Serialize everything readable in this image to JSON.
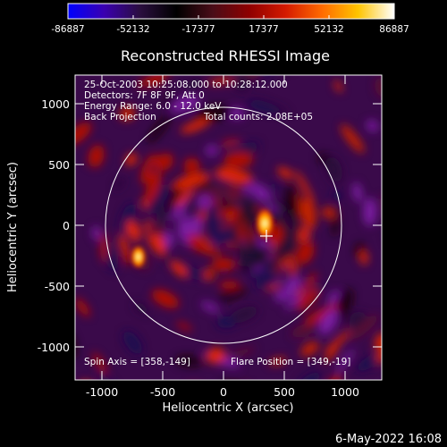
{
  "title": "Reconstructed RHESSI Image",
  "annotations": {
    "time": "25-Oct-2003 10:25:08.000 to 10:28:12.000",
    "detectors": "Detectors: 7F 8F 9F, Att 0",
    "energy": "Energy Range: 6.0 - 12.0 keV",
    "method": "Back Projection",
    "counts": "Total counts: 2.08E+05",
    "spin_axis": "Spin Axis = [358,-149]",
    "flare_position": "Flare Position = [349,-19]"
  },
  "axes": {
    "xlabel": "Heliocentric X (arcsec)",
    "ylabel": "Heliocentric Y (arcsec)",
    "x_ticks": [
      "-1000",
      "-500",
      "0",
      "500",
      "1000"
    ],
    "y_ticks": [
      "1000",
      "500",
      "0",
      "-500",
      "-1000"
    ]
  },
  "colorbar": {
    "ticks": [
      "-86887",
      "-52132",
      "-17377",
      "17377",
      "52132",
      "86887"
    ],
    "colors": [
      "#0000ff",
      "#3a00b0",
      "#2a0e3e",
      "#000000",
      "#4a0d18",
      "#8f0000",
      "#d41a00",
      "#ff6a00",
      "#ffc400",
      "#ffffff"
    ]
  },
  "footer_date": "6-May-2022 16:08",
  "chart_data": {
    "type": "heatmap",
    "title": "Reconstructed RHESSI Image",
    "xlabel": "Heliocentric X (arcsec)",
    "ylabel": "Heliocentric Y (arcsec)",
    "xlim": [
      -1270,
      1300
    ],
    "ylim": [
      -1300,
      1270
    ],
    "colorbar_range": [
      -86887,
      86887
    ],
    "solar_disk_radius": 970,
    "flare_position": [
      349,
      -19
    ],
    "spin_axis": [
      358,
      -149
    ],
    "bright_sources": [
      {
        "x": 340,
        "y": 0
      },
      {
        "x": -700,
        "y": -260
      }
    ]
  }
}
